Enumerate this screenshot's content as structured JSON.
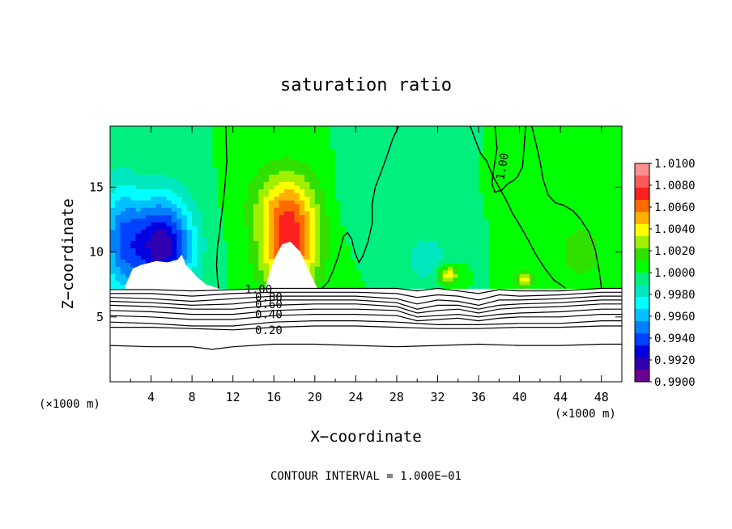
{
  "chart_data": {
    "type": "heatmap",
    "title": "saturation ratio",
    "xlabel": "X−coordinate",
    "ylabel": "Z−coordinate",
    "x_unit_left": "(×1000 m)",
    "x_unit_right": "(×1000 m)",
    "footer": "CONTOUR INTERVAL = 1.000E−01",
    "xlim": [
      0,
      50
    ],
    "ylim": [
      0,
      19.7
    ],
    "x_ticks": [
      4,
      8,
      12,
      16,
      20,
      24,
      28,
      32,
      36,
      40,
      44,
      48
    ],
    "x_tick_labels": [
      "4",
      "8",
      "12",
      "16",
      "20",
      "24",
      "28",
      "32",
      "36",
      "40",
      "44",
      "48"
    ],
    "y_ticks": [
      5,
      10,
      15
    ],
    "y_tick_labels": [
      "5",
      "10",
      "15"
    ],
    "colorbar": {
      "range": [
        0.99,
        1.01
      ],
      "labels": [
        "1.0100",
        "1.0080",
        "1.0060",
        "1.0040",
        "1.0020",
        "1.0000",
        "0.9980",
        "0.9960",
        "0.9940",
        "0.9920",
        "0.9900"
      ],
      "colors": [
        "#ff9090",
        "#ff5a5a",
        "#ff2020",
        "#ff6a00",
        "#ffb000",
        "#ffff00",
        "#a0f000",
        "#30e000",
        "#00ff00",
        "#00f080",
        "#00e8c0",
        "#00ffff",
        "#00c0ff",
        "#0080ff",
        "#0040ff",
        "#0000e0",
        "#3000b0",
        "#6a0090"
      ]
    },
    "contour_labels": [
      "1.00",
      "1.00",
      "0.80",
      "0.60",
      "0.40",
      "0.20"
    ],
    "background_value": 1.0,
    "surface_z": 7.2,
    "features": [
      {
        "kind": "dry-blob",
        "x": 5.0,
        "z": 10.5,
        "sx": 3.0,
        "sz": 3.8,
        "value": 0.9915
      },
      {
        "kind": "dry-blob",
        "x": 1.0,
        "z": 11.0,
        "sx": 2.0,
        "sz": 4.5,
        "value": 0.9955
      },
      {
        "kind": "moist-blob",
        "x": 17.5,
        "z": 10.5,
        "sx": 2.8,
        "sz": 4.0,
        "value": 1.0068
      },
      {
        "kind": "moist-blob",
        "x": 17.0,
        "z": 14.0,
        "sx": 3.5,
        "sz": 3.0,
        "value": 1.0025
      },
      {
        "kind": "moist-blob",
        "x": 33.0,
        "z": 8.3,
        "sx": 1.0,
        "sz": 0.7,
        "value": 1.0045
      },
      {
        "kind": "moist-blob",
        "x": 40.5,
        "z": 7.9,
        "sx": 0.7,
        "sz": 0.5,
        "value": 1.005
      },
      {
        "kind": "moist-blob",
        "x": 46.0,
        "z": 10.0,
        "sx": 3.0,
        "sz": 3.0,
        "value": 1.0015
      },
      {
        "kind": "dry-blob",
        "x": 31.0,
        "z": 9.5,
        "sx": 2.0,
        "sz": 2.0,
        "value": 0.998
      },
      {
        "kind": "dry-blob",
        "x": 24.5,
        "z": 14.5,
        "sx": 3.0,
        "sz": 3.0,
        "value": 0.9992
      }
    ],
    "unsaturated_regions": [
      {
        "x": [
          1.5,
          2.2,
          3.0,
          4.5,
          5.6,
          6.6,
          7.0,
          7.4,
          8.6,
          9.4,
          10.6
        ],
        "z_top": [
          7.4,
          8.7,
          9.0,
          9.3,
          9.2,
          9.4,
          9.8,
          9.0,
          8.0,
          7.5,
          7.2
        ]
      },
      {
        "x": [
          15.2,
          16.0,
          16.8,
          17.6,
          18.6,
          19.4,
          20.2
        ],
        "z_top": [
          7.4,
          9.4,
          10.6,
          10.8,
          10.0,
          8.6,
          7.3
        ]
      }
    ],
    "contours_lower": [
      {
        "level": 1.0,
        "x": [
          0,
          4,
          8,
          12,
          16,
          20,
          24,
          28,
          30,
          32,
          34,
          36,
          38,
          40,
          44,
          48,
          50
        ],
        "z": [
          7.1,
          7.1,
          7.0,
          7.1,
          7.2,
          7.2,
          7.2,
          7.2,
          7.0,
          7.2,
          7.0,
          6.8,
          7.1,
          7.0,
          7.0,
          7.2,
          7.2
        ]
      },
      {
        "level": 0.9,
        "x": [
          0,
          4,
          8,
          12,
          16,
          20,
          24,
          28,
          30,
          32,
          34,
          36,
          38,
          40,
          44,
          48,
          50
        ],
        "z": [
          6.8,
          6.8,
          6.6,
          6.8,
          6.9,
          6.9,
          6.9,
          6.8,
          6.5,
          6.7,
          6.6,
          6.3,
          6.7,
          6.6,
          6.7,
          6.9,
          6.9
        ]
      },
      {
        "level": 0.8,
        "x": [
          0,
          4,
          8,
          12,
          16,
          20,
          24,
          28,
          30,
          32,
          34,
          36,
          38,
          40,
          44,
          48,
          50
        ],
        "z": [
          6.5,
          6.4,
          6.2,
          6.4,
          6.6,
          6.6,
          6.6,
          6.4,
          6.0,
          6.3,
          6.2,
          5.9,
          6.3,
          6.3,
          6.4,
          6.6,
          6.6
        ]
      },
      {
        "level": 0.7,
        "x": [
          0,
          4,
          8,
          12,
          16,
          20,
          24,
          28,
          30,
          32,
          34,
          36,
          38,
          40,
          44,
          48,
          50
        ],
        "z": [
          6.2,
          6.1,
          5.9,
          6.0,
          6.3,
          6.3,
          6.3,
          6.1,
          5.6,
          5.9,
          5.9,
          5.6,
          5.9,
          6.0,
          6.1,
          6.3,
          6.3
        ]
      },
      {
        "level": 0.6,
        "x": [
          0,
          4,
          8,
          12,
          16,
          20,
          24,
          28,
          30,
          32,
          34,
          36,
          38,
          40,
          44,
          48,
          50
        ],
        "z": [
          5.9,
          5.8,
          5.6,
          5.6,
          5.9,
          6.0,
          6.0,
          5.8,
          5.3,
          5.5,
          5.6,
          5.3,
          5.6,
          5.7,
          5.8,
          6.0,
          6.0
        ]
      },
      {
        "level": 0.5,
        "x": [
          0,
          4,
          8,
          12,
          16,
          20,
          24,
          28,
          30,
          32,
          34,
          36,
          38,
          40,
          44,
          48,
          50
        ],
        "z": [
          5.5,
          5.4,
          5.2,
          5.2,
          5.5,
          5.6,
          5.6,
          5.5,
          5.0,
          5.1,
          5.2,
          5.0,
          5.2,
          5.3,
          5.4,
          5.6,
          5.6
        ]
      },
      {
        "level": 0.4,
        "x": [
          0,
          4,
          8,
          12,
          16,
          20,
          24,
          28,
          30,
          32,
          34,
          36,
          38,
          40,
          44,
          48,
          50
        ],
        "z": [
          5.1,
          5.0,
          4.8,
          4.8,
          5.1,
          5.2,
          5.2,
          5.1,
          4.7,
          4.8,
          4.9,
          4.7,
          4.9,
          5.0,
          5.0,
          5.2,
          5.2
        ]
      },
      {
        "level": 0.3,
        "x": [
          0,
          4,
          8,
          12,
          16,
          20,
          24,
          28,
          32,
          36,
          40,
          44,
          48,
          50
        ],
        "z": [
          4.6,
          4.5,
          4.3,
          4.3,
          4.6,
          4.7,
          4.7,
          4.6,
          4.4,
          4.4,
          4.5,
          4.5,
          4.7,
          4.7
        ]
      },
      {
        "level": 0.2,
        "x": [
          0,
          4,
          8,
          12,
          16,
          20,
          24,
          28,
          32,
          36,
          40,
          44,
          48,
          50
        ],
        "z": [
          4.2,
          4.2,
          4.1,
          4.0,
          4.2,
          4.3,
          4.3,
          4.2,
          4.1,
          4.1,
          4.2,
          4.2,
          4.3,
          4.3
        ]
      },
      {
        "level": 0.1,
        "x": [
          0,
          4,
          8,
          10,
          12,
          16,
          20,
          24,
          28,
          32,
          36,
          40,
          44,
          48,
          50
        ],
        "z": [
          2.8,
          2.7,
          2.7,
          2.5,
          2.7,
          2.9,
          2.9,
          2.8,
          2.7,
          2.8,
          2.9,
          2.8,
          2.8,
          2.9,
          2.9
        ]
      }
    ],
    "contours_upper": [
      {
        "level": 1.0,
        "x": [
          11.3,
          11.4,
          11.2,
          11.0,
          10.8,
          10.7,
          10.5,
          10.4,
          10.5,
          10.6
        ],
        "z": [
          19.7,
          17.0,
          15.0,
          13.5,
          12.3,
          11.5,
          10.5,
          9.0,
          7.8,
          7.2
        ]
      },
      {
        "level": 1.0,
        "x": [
          28.2,
          27.6,
          27.0,
          26.4,
          25.9,
          25.6,
          25.6,
          25.2,
          24.7,
          24.3,
          23.9,
          23.6,
          23.2,
          22.8,
          22.3,
          21.8,
          21.3,
          20.7
        ],
        "z": [
          19.7,
          18.7,
          17.3,
          16.0,
          15.0,
          13.7,
          12.2,
          10.8,
          9.7,
          9.2,
          10.0,
          11.0,
          11.5,
          11.2,
          9.7,
          8.6,
          7.7,
          7.2
        ]
      },
      {
        "level": 1.0,
        "x": [
          37.6,
          37.8,
          37.5,
          37.3,
          37.6,
          38.3,
          38.9,
          39.4,
          39.8,
          40.3,
          40.6
        ],
        "z": [
          19.7,
          18.0,
          16.5,
          15.3,
          14.6,
          14.8,
          15.3,
          15.5,
          15.8,
          16.6,
          19.7
        ]
      },
      {
        "level": 1.0,
        "x": [
          41.2,
          41.6,
          42.0,
          42.3,
          42.8,
          43.5,
          44.3,
          45.2,
          46.0,
          46.8,
          47.4,
          47.8,
          48.0
        ],
        "z": [
          19.7,
          18.4,
          17.0,
          15.6,
          14.4,
          13.8,
          13.6,
          13.2,
          12.5,
          11.5,
          10.2,
          8.5,
          7.2
        ]
      },
      {
        "level": 1.0,
        "x": [
          35.2,
          35.7,
          36.2,
          36.8,
          37.3,
          38.0,
          38.7,
          39.3,
          40.0,
          40.8,
          41.6,
          42.5,
          43.4,
          44.0,
          44.5
        ],
        "z": [
          19.7,
          18.6,
          17.6,
          17.0,
          16.0,
          15.0,
          14.0,
          13.0,
          12.1,
          11.0,
          9.8,
          8.7,
          7.8,
          7.5,
          7.2
        ]
      }
    ]
  }
}
